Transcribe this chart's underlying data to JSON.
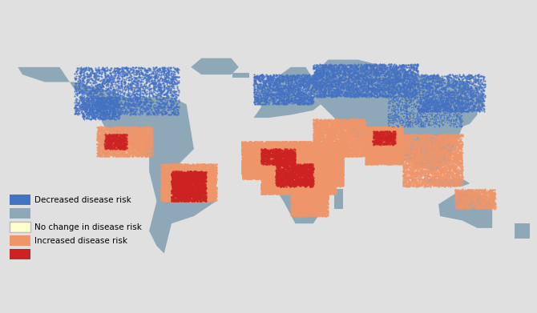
{
  "background_color": "#e0e0e0",
  "land_base_color": "#8fa8b8",
  "legend_colors": {
    "blue": "#4472c4",
    "gray": "#8fa8b8",
    "yellow": "#ffffcc",
    "orange": "#f0956a",
    "red": "#cc2222"
  },
  "legend_labels": {
    "blue": "Decreased disease risk",
    "yellow": "No change in disease risk",
    "orange": "Increased disease risk"
  },
  "figsize": [
    6.7,
    3.91
  ],
  "dpi": 100
}
